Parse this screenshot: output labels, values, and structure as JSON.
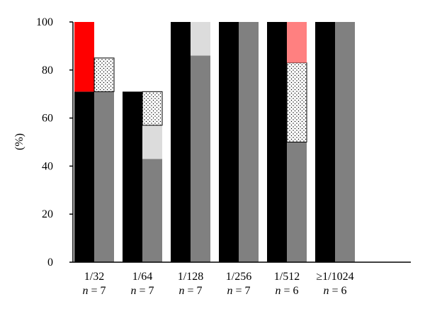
{
  "chart_data": {
    "type": "bar",
    "ylabel": "(%)",
    "ylim": [
      0,
      100
    ],
    "yticks": [
      0,
      20,
      40,
      60,
      80,
      100
    ],
    "categories": [
      {
        "label": "1/32",
        "n_var": "n",
        "n_rest": " = 7"
      },
      {
        "label": "1/64",
        "n_var": "n",
        "n_rest": " = 7"
      },
      {
        "label": "1/128",
        "n_var": "n",
        "n_rest": " = 7"
      },
      {
        "label": "1/256",
        "n_var": "n",
        "n_rest": " = 7"
      },
      {
        "label": "1/512",
        "n_var": "n",
        "n_rest": " = 6"
      },
      {
        "label": "≥1/1024",
        "n_var": "n",
        "n_rest": " = 6"
      }
    ],
    "series": [
      {
        "bar": "left",
        "stacks": [
          [
            {
              "value": 71,
              "fill": "black"
            },
            {
              "value": 29,
              "fill": "red"
            }
          ],
          [
            {
              "value": 71,
              "fill": "black"
            }
          ],
          [
            {
              "value": 100,
              "fill": "black"
            }
          ],
          [
            {
              "value": 100,
              "fill": "black"
            }
          ],
          [
            {
              "value": 100,
              "fill": "black"
            }
          ],
          [
            {
              "value": 100,
              "fill": "black"
            }
          ]
        ]
      },
      {
        "bar": "right",
        "stacks": [
          [
            {
              "value": 71,
              "fill": "gray"
            },
            {
              "value": 14,
              "fill": "dotted"
            }
          ],
          [
            {
              "value": 43,
              "fill": "lightgray-base"
            },
            {
              "value": 14,
              "fill": "lightgray"
            },
            {
              "value": 14,
              "fill": "dotted"
            }
          ],
          [
            {
              "value": 86,
              "fill": "gray"
            },
            {
              "value": 14,
              "fill": "lightgray"
            }
          ],
          [
            {
              "value": 100,
              "fill": "gray"
            }
          ],
          [
            {
              "value": 50,
              "fill": "gray"
            },
            {
              "value": 33,
              "fill": "dotted"
            },
            {
              "value": 17,
              "fill": "pink"
            }
          ],
          [
            {
              "value": 100,
              "fill": "gray"
            }
          ]
        ]
      }
    ],
    "colors": {
      "black": "#000000",
      "red": "#ff0000",
      "gray": "#808080",
      "lightgray-base": "#808080",
      "lightgray": "#dcdcdc",
      "pink": "#ff8080",
      "dotted": "#ffffff"
    }
  }
}
